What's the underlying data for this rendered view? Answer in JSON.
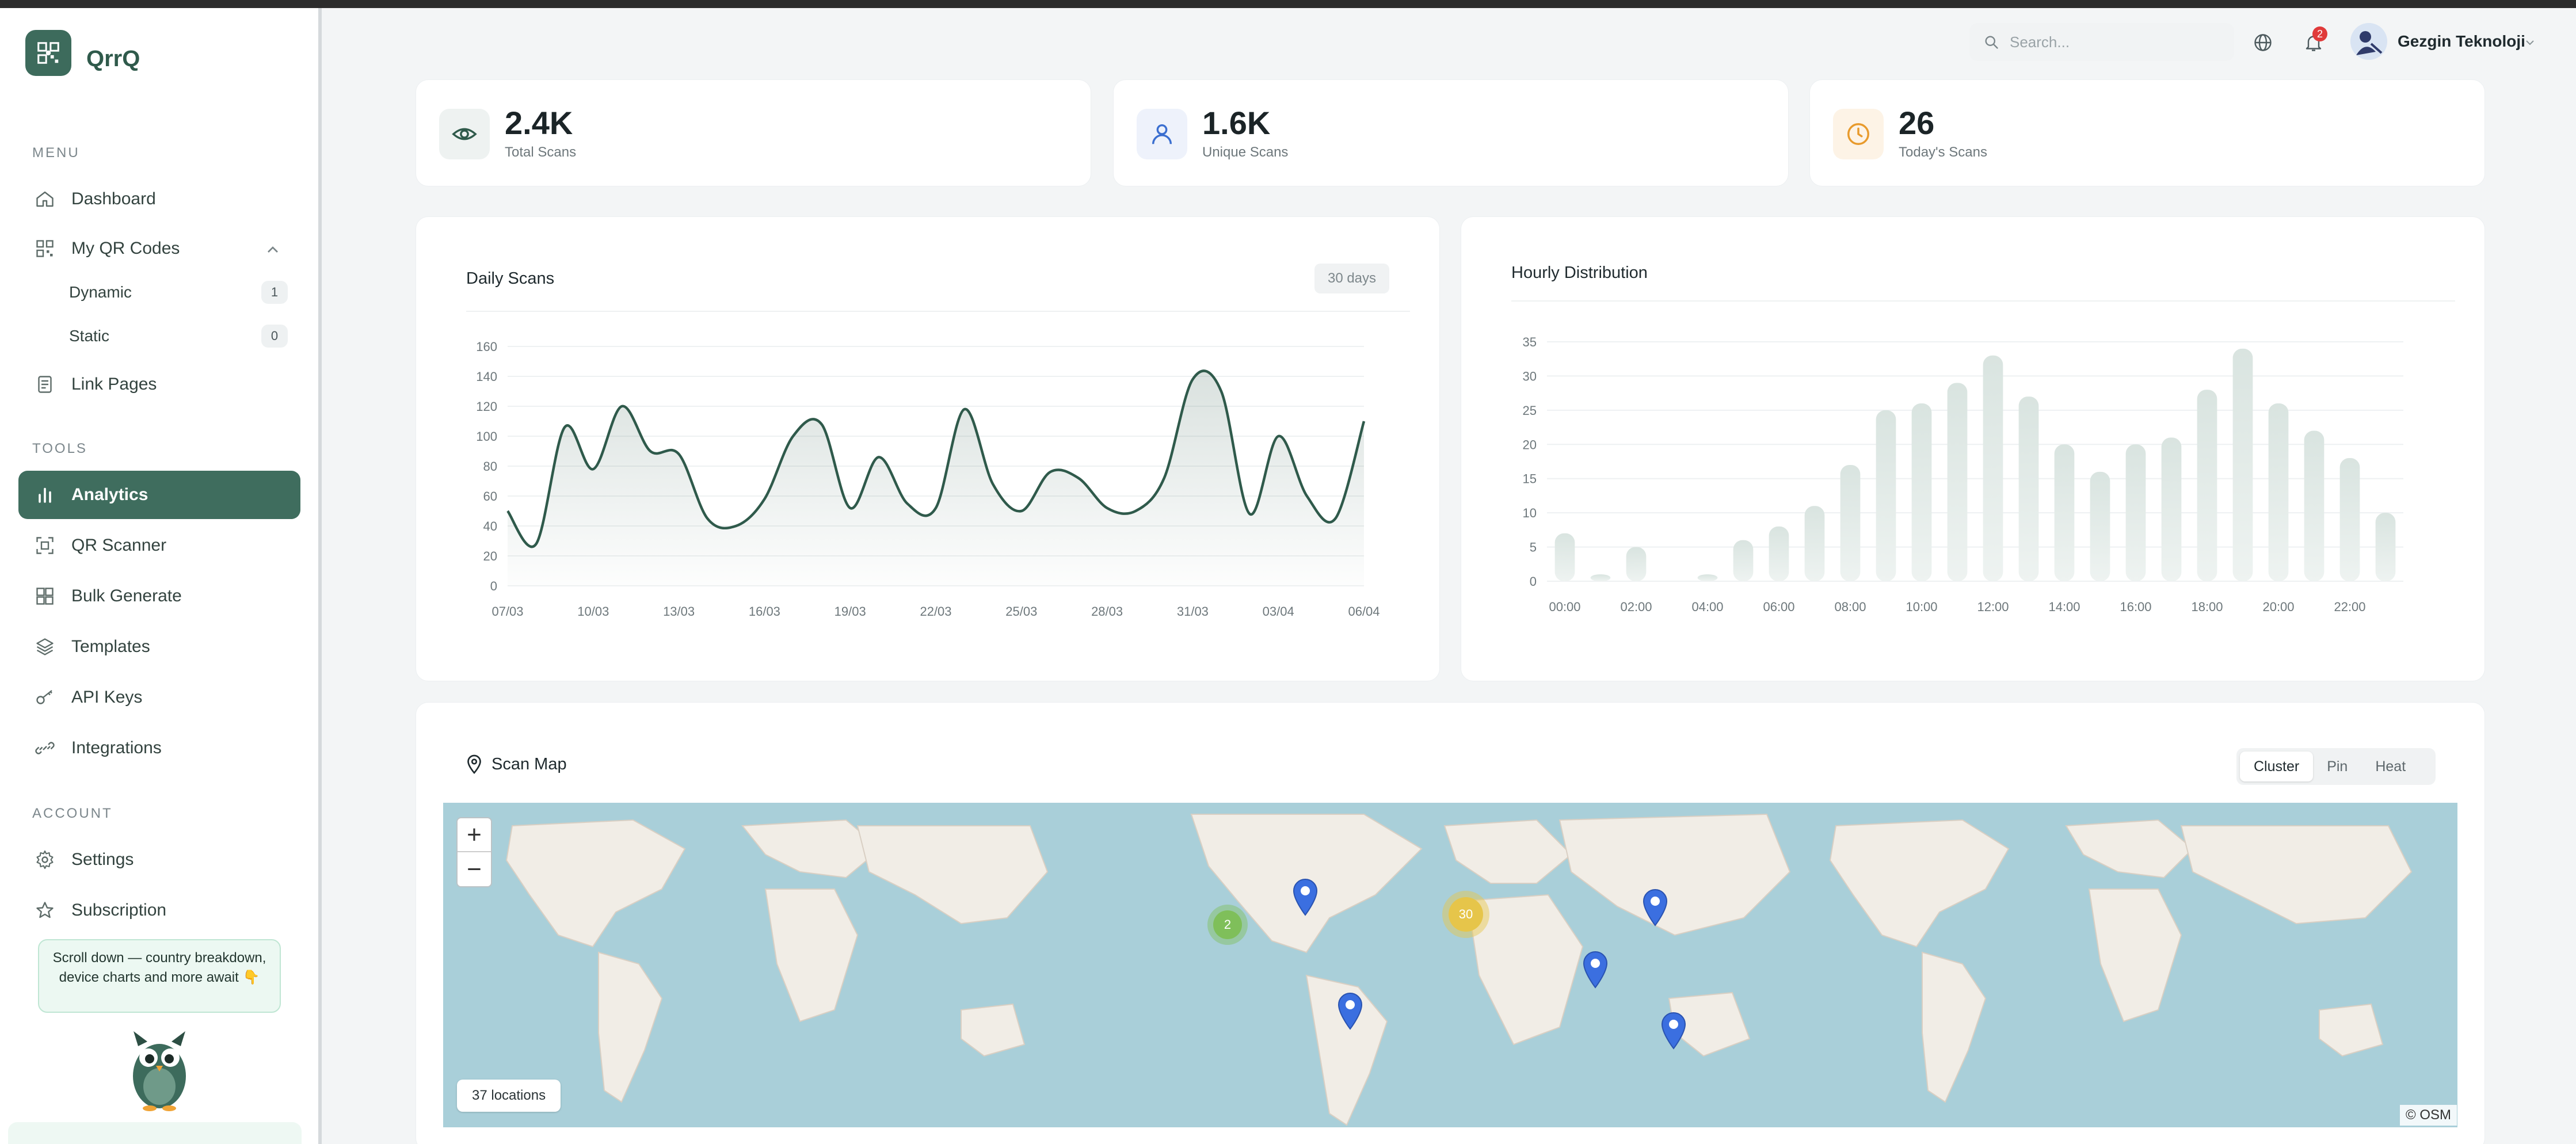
{
  "app": {
    "name": "QrrQ"
  },
  "sidebar": {
    "menu_label": "MENU",
    "tools_label": "TOOLS",
    "account_label": "ACCOUNT",
    "items": {
      "dashboard": "Dashboard",
      "my_qr_codes": "My QR Codes",
      "dynamic": "Dynamic",
      "dynamic_count": "1",
      "static": "Static",
      "static_count": "0",
      "link_pages": "Link Pages",
      "analytics": "Analytics",
      "qr_scanner": "QR Scanner",
      "bulk_generate": "Bulk Generate",
      "templates": "Templates",
      "api_keys": "API Keys",
      "integrations": "Integrations",
      "settings": "Settings",
      "subscription": "Subscription"
    },
    "hint": "Scroll down — country breakdown, device charts and more await 👇"
  },
  "header": {
    "search_placeholder": "Search...",
    "notification_count": "2",
    "user_name": "Gezgin Teknoloji"
  },
  "stats": [
    {
      "value": "2.4K",
      "label": "Total Scans",
      "icon": "eye-icon",
      "color": "#2f5a4b"
    },
    {
      "value": "1.6K",
      "label": "Unique Scans",
      "icon": "user-icon",
      "color": "#3b6fd0"
    },
    {
      "value": "26",
      "label": "Today's Scans",
      "icon": "clock-icon",
      "color": "#e89a2c"
    }
  ],
  "daily": {
    "title": "Daily Scans",
    "range": "30 days"
  },
  "hourly": {
    "title": "Hourly Distribution"
  },
  "chart_data": [
    {
      "type": "line",
      "title": "Daily Scans",
      "ylim": [
        0,
        160
      ],
      "yticks": [
        0,
        20,
        40,
        60,
        80,
        100,
        120,
        140,
        160
      ],
      "xticks": [
        "07/03",
        "10/03",
        "13/03",
        "16/03",
        "19/03",
        "22/03",
        "25/03",
        "28/03",
        "31/03",
        "03/04",
        "06/04"
      ],
      "x": [
        "07/03",
        "08/03",
        "09/03",
        "10/03",
        "11/03",
        "12/03",
        "13/03",
        "14/03",
        "15/03",
        "16/03",
        "17/03",
        "18/03",
        "19/03",
        "20/03",
        "21/03",
        "22/03",
        "23/03",
        "24/03",
        "25/03",
        "26/03",
        "27/03",
        "28/03",
        "29/03",
        "30/03",
        "31/03",
        "01/04",
        "02/04",
        "03/04",
        "04/04",
        "05/04",
        "06/04"
      ],
      "values": [
        50,
        28,
        106,
        78,
        120,
        90,
        88,
        45,
        40,
        58,
        100,
        108,
        52,
        86,
        55,
        52,
        118,
        68,
        50,
        76,
        72,
        52,
        50,
        72,
        138,
        130,
        48,
        100,
        60,
        45,
        110
      ],
      "color": "#2f5a4b"
    },
    {
      "type": "bar",
      "title": "Hourly Distribution",
      "ylim": [
        0,
        35
      ],
      "yticks": [
        0,
        5,
        10,
        15,
        20,
        25,
        30,
        35
      ],
      "categories": [
        "00:00",
        "01:00",
        "02:00",
        "03:00",
        "04:00",
        "05:00",
        "06:00",
        "07:00",
        "08:00",
        "09:00",
        "10:00",
        "11:00",
        "12:00",
        "13:00",
        "14:00",
        "15:00",
        "16:00",
        "17:00",
        "18:00",
        "19:00",
        "20:00",
        "21:00",
        "22:00",
        "23:00"
      ],
      "xticks": [
        "00:00",
        "02:00",
        "04:00",
        "06:00",
        "08:00",
        "10:00",
        "12:00",
        "14:00",
        "16:00",
        "18:00",
        "20:00",
        "22:00"
      ],
      "values": [
        7,
        1,
        5,
        0,
        1,
        6,
        8,
        11,
        17,
        25,
        26,
        29,
        33,
        27,
        20,
        16,
        20,
        21,
        28,
        34,
        26,
        22,
        18,
        10
      ],
      "color": "#dfe7e4"
    }
  ],
  "map": {
    "title": "Scan Map",
    "modes": [
      "Cluster",
      "Pin",
      "Heat"
    ],
    "active_mode": "Cluster",
    "zoom_in": "+",
    "zoom_out": "−",
    "locations_label": "37 locations",
    "attribution": "© OSM",
    "clusters": [
      {
        "count": "2",
        "color": "#7fbf5a"
      },
      {
        "count": "30",
        "color": "#e6c54a"
      }
    ]
  }
}
